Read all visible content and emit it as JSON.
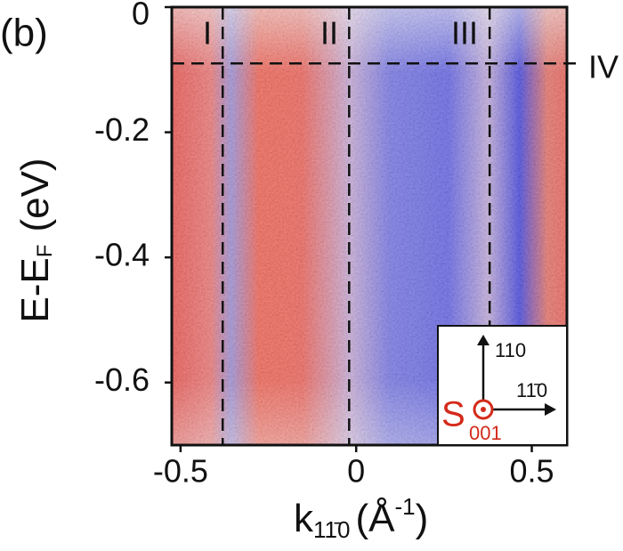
{
  "chart_data": {
    "type": "heatmap",
    "panel_label": "(b)",
    "x_label": {
      "symbol": "k",
      "subscript": "11̄0",
      "unit_open": "(Å",
      "unit_sup": "-1",
      "unit_close": ")"
    },
    "y_label": {
      "main": "E-E",
      "subscript": "F",
      "unit": "(eV)"
    },
    "xlim": [
      -0.525,
      0.6
    ],
    "ylim": [
      -0.7,
      0
    ],
    "xticks": [
      -0.5,
      0,
      0.5
    ],
    "yticks": [
      0,
      -0.2,
      -0.4,
      -0.6
    ],
    "vlines": [
      -0.38,
      -0.02,
      0.38
    ],
    "hlines": [
      -0.09
    ],
    "region_labels": [
      "I",
      "II",
      "III",
      "IV"
    ],
    "inset": {
      "axis_up": "110",
      "axis_right": "11̄0",
      "symbol": "S",
      "subscript": "001"
    }
  }
}
